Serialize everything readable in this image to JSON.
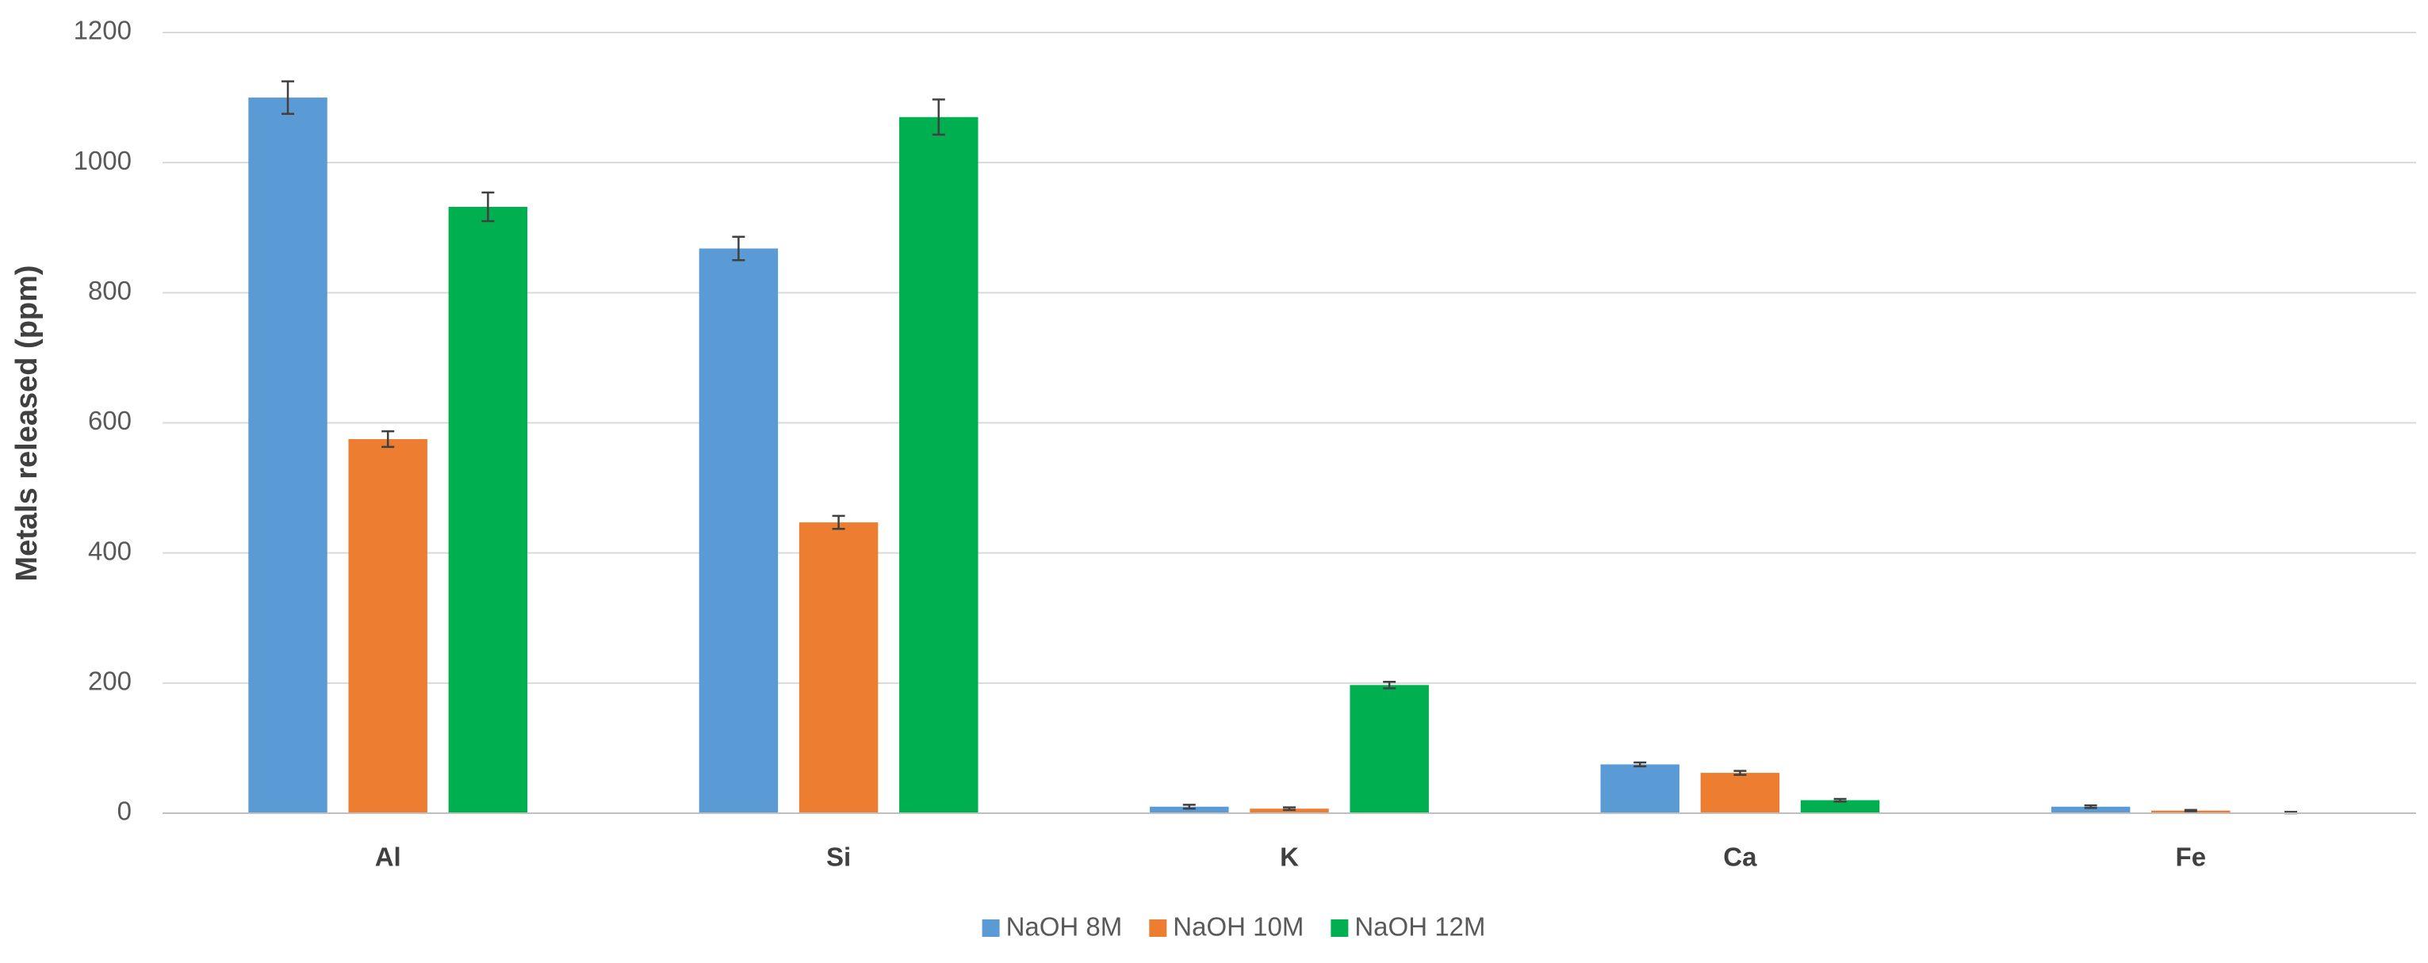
{
  "chart_data": {
    "type": "bar",
    "y_label": "Metals released (ppm)",
    "categories": [
      "Al",
      "Si",
      "K",
      "Ca",
      "Fe"
    ],
    "series": [
      {
        "name": "NaOH 8M",
        "color": "#5b9bd5",
        "values": [
          1100,
          868,
          10,
          75,
          10
        ],
        "errors": [
          25,
          18,
          3,
          3,
          2
        ]
      },
      {
        "name": "NaOH 10M",
        "color": "#ed7d31",
        "values": [
          575,
          447,
          7,
          62,
          4
        ],
        "errors": [
          12,
          10,
          2,
          3,
          1
        ]
      },
      {
        "name": "NaOH 12M",
        "color": "#00b050",
        "values": [
          932,
          1070,
          197,
          20,
          1
        ],
        "errors": [
          22,
          27,
          5,
          2,
          1
        ]
      }
    ],
    "ylim": [
      0,
      1200
    ],
    "yticks": [
      0,
      200,
      400,
      600,
      800,
      1000,
      1200
    ],
    "grid": true,
    "legend": "bottom"
  }
}
